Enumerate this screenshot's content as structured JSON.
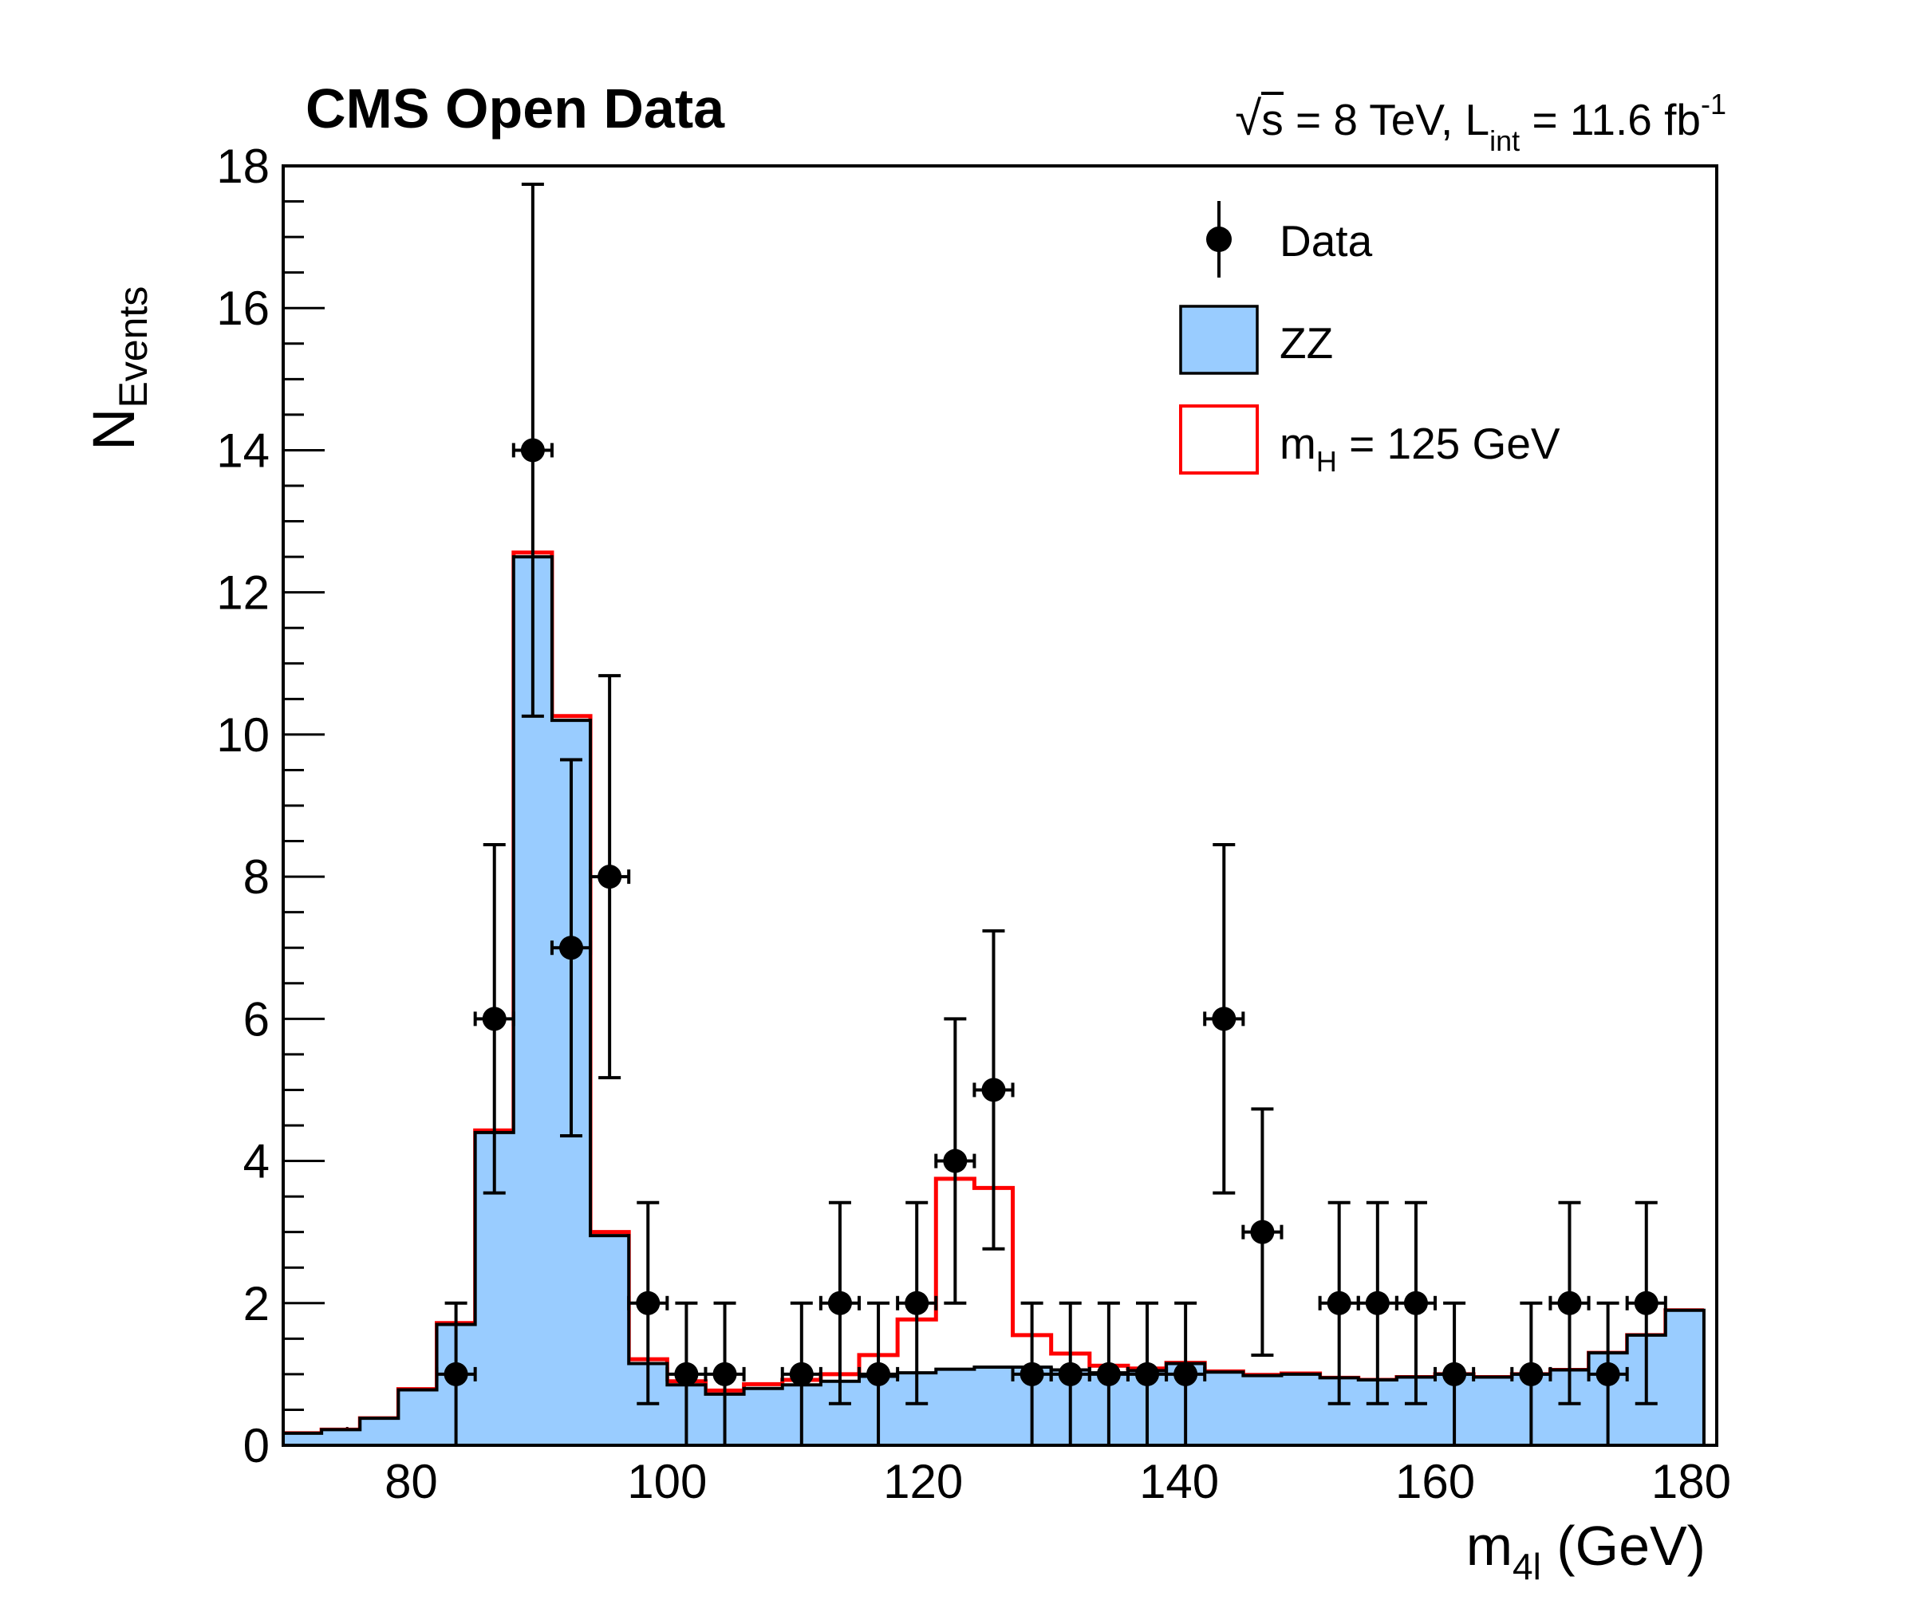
{
  "header": {
    "title": "CMS Open Data",
    "energy_lumi": {
      "sqrt_sym": "√",
      "sqrt_arg": "s",
      "middle": " = 8 TeV, L",
      "lumi_sub": "int",
      "after": " = 11.6 fb",
      "exponent": "-1"
    }
  },
  "axes": {
    "y_title_main": "N",
    "y_title_sub": "Events",
    "x_title_main": "m",
    "x_title_sub": "4l",
    "x_title_rest": " (GeV)"
  },
  "legend": {
    "data_label": "Data",
    "zz_label": "ZZ",
    "higgs_label_pre": "m",
    "higgs_label_sub": "H",
    "higgs_label_post": " = 125 GeV"
  },
  "colors": {
    "zz_fill": "#99ccff",
    "higgs_line": "#ff0000",
    "foreground": "#000000",
    "background": "#ffffff"
  },
  "chart_data": {
    "type": "bar",
    "subtype": "histogram-with-data-points",
    "title": "CMS Open Data",
    "xlabel": "m_4l (GeV)",
    "ylabel": "N_Events",
    "x_range": [
      70,
      182
    ],
    "y_range": [
      0,
      18
    ],
    "x_major_ticks": [
      80,
      100,
      120,
      140,
      160,
      180
    ],
    "x_minor_step": 5,
    "y_major_ticks": [
      0,
      2,
      4,
      6,
      8,
      10,
      12,
      14,
      16,
      18
    ],
    "y_minor_step": 0.5,
    "grid": "off",
    "legend_position": "top-right-inside",
    "bin_width": 3,
    "bin_centers": [
      71.5,
      74.5,
      77.5,
      80.5,
      83.5,
      86.5,
      89.5,
      92.5,
      95.5,
      98.5,
      101.5,
      104.5,
      107.5,
      110.5,
      113.5,
      116.5,
      119.5,
      122.5,
      125.5,
      128.5,
      131.5,
      134.5,
      137.5,
      140.5,
      143.5,
      146.5,
      149.5,
      152.5,
      155.5,
      158.5,
      161.5,
      164.5,
      167.5,
      170.5,
      173.5,
      176.5,
      179.5
    ],
    "series": [
      {
        "name": "ZZ",
        "style": "filled-histogram",
        "values": [
          0.17,
          0.22,
          0.38,
          0.78,
          1.7,
          4.4,
          12.5,
          10.2,
          2.95,
          1.15,
          0.85,
          0.72,
          0.8,
          0.85,
          0.9,
          0.97,
          1.02,
          1.07,
          1.1,
          1.1,
          1.06,
          1.02,
          1.05,
          1.15,
          1.03,
          0.98,
          1.0,
          0.95,
          0.92,
          0.96,
          1.0,
          0.96,
          1.0,
          1.06,
          1.3,
          1.55,
          1.9
        ]
      },
      {
        "name": "mH = 125 GeV",
        "style": "line-histogram",
        "values": [
          0.17,
          0.22,
          0.38,
          0.79,
          1.72,
          4.43,
          12.56,
          10.26,
          3.0,
          1.21,
          0.9,
          0.77,
          0.86,
          0.92,
          1.0,
          1.27,
          1.77,
          3.75,
          3.62,
          1.55,
          1.29,
          1.12,
          1.08,
          1.16,
          1.04,
          0.99,
          1.01,
          0.95,
          0.92,
          0.96,
          1.0,
          0.96,
          1.0,
          1.06,
          1.3,
          1.55,
          1.9
        ]
      },
      {
        "name": "Data",
        "style": "points-with-poisson-errors",
        "error_type": "sqrt",
        "x_error_halfwidth": 1.5,
        "points": [
          [
            83.5,
            1
          ],
          [
            86.5,
            6
          ],
          [
            89.5,
            14
          ],
          [
            92.5,
            7
          ],
          [
            95.5,
            8
          ],
          [
            98.5,
            2
          ],
          [
            101.5,
            1
          ],
          [
            104.5,
            1
          ],
          [
            110.5,
            1
          ],
          [
            113.5,
            2
          ],
          [
            116.5,
            1
          ],
          [
            119.5,
            2
          ],
          [
            122.5,
            4
          ],
          [
            125.5,
            5
          ],
          [
            128.5,
            1
          ],
          [
            131.5,
            1
          ],
          [
            134.5,
            1
          ],
          [
            137.5,
            1
          ],
          [
            140.5,
            1
          ],
          [
            143.5,
            6
          ],
          [
            146.5,
            3
          ],
          [
            152.5,
            2
          ],
          [
            155.5,
            2
          ],
          [
            158.5,
            2
          ],
          [
            161.5,
            1
          ],
          [
            167.5,
            1
          ],
          [
            170.5,
            2
          ],
          [
            173.5,
            1
          ],
          [
            176.5,
            2
          ]
        ]
      }
    ]
  }
}
